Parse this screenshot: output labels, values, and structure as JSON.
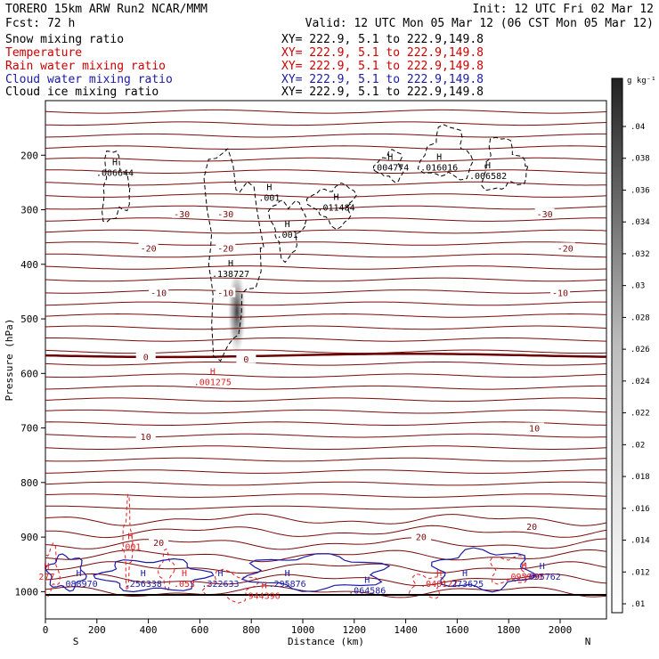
{
  "header": {
    "model": "TORERO  15km ARW    Run2     NCAR/MMM",
    "init": "Init: 12 UTC Fri 02 Mar 12",
    "fcst": "Fcst:    72 h",
    "valid": "Valid: 12 UTC Mon 05 Mar 12 (06 CST Mon 05 Mar 12)"
  },
  "fields": [
    {
      "name": "Snow mixing ratio",
      "xy": "XY= 222.9,   5.1 to 222.9,149.8",
      "color": "#000000"
    },
    {
      "name": "Temperature",
      "xy": "XY= 222.9,   5.1 to 222.9,149.8",
      "color": "#cc0000"
    },
    {
      "name": "Rain water mixing ratio",
      "xy": "XY= 222.9,   5.1 to 222.9,149.8",
      "color": "#cc0000"
    },
    {
      "name": "Cloud water mixing ratio",
      "xy": "XY= 222.9,   5.1 to 222.9,149.8",
      "color": "#1a1aa6"
    },
    {
      "name": "Cloud ice mixing ratio",
      "xy": "XY= 222.9,   5.1 to 222.9,149.8",
      "color": "#000000"
    }
  ],
  "colors": {
    "temperature": "#7a0a0a",
    "freezing_line": "#6b0000",
    "rain": "#e02020",
    "cloud_water": "#1a1aa6",
    "snow": "#000000"
  },
  "colorbar": {
    "unit": "g kg⁻¹",
    "ticks": [
      ".01",
      ".012",
      ".014",
      ".016",
      ".018",
      ".02",
      ".022",
      ".024",
      ".026",
      ".028",
      ".03",
      ".032",
      ".034",
      ".036",
      ".038",
      ".04"
    ]
  },
  "chart_data": {
    "type": "contour",
    "xlabel": "Distance (km)",
    "ylabel": "Pressure (hPa)",
    "xlim": [
      0,
      2180
    ],
    "ylim": [
      1050,
      100
    ],
    "x_ticks": [
      0,
      200,
      400,
      600,
      800,
      1000,
      1200,
      1400,
      1600,
      1800,
      2000
    ],
    "y_ticks": [
      200,
      300,
      400,
      500,
      600,
      700,
      800,
      900,
      1000
    ],
    "x_end_labels": {
      "left": "S",
      "right": "N"
    },
    "temperature_contours": [
      {
        "label": "-30",
        "positions": [
          {
            "x": 530,
            "p": 307
          },
          {
            "x": 700,
            "p": 307
          },
          {
            "x": 1940,
            "p": 307
          }
        ]
      },
      {
        "label": "-20",
        "positions": [
          {
            "x": 400,
            "p": 370
          },
          {
            "x": 700,
            "p": 370
          },
          {
            "x": 2020,
            "p": 370
          }
        ]
      },
      {
        "label": "-10",
        "positions": [
          {
            "x": 440,
            "p": 452
          },
          {
            "x": 700,
            "p": 452
          },
          {
            "x": 2000,
            "p": 452
          }
        ]
      },
      {
        "label": "0",
        "positions": [
          {
            "x": 390,
            "p": 569
          },
          {
            "x": 780,
            "p": 573
          }
        ]
      },
      {
        "label": "10",
        "positions": [
          {
            "x": 390,
            "p": 715
          },
          {
            "x": 1900,
            "p": 700
          }
        ]
      },
      {
        "label": "20",
        "positions": [
          {
            "x": 440,
            "p": 910
          },
          {
            "x": 1460,
            "p": 899
          },
          {
            "x": 1890,
            "p": 880
          }
        ]
      }
    ],
    "maxima": [
      {
        "field": "snow",
        "label": "H",
        "value": ".006644",
        "x": 270,
        "p": 235
      },
      {
        "field": "snow",
        "label": "H",
        "value": ".001",
        "x": 870,
        "p": 280
      },
      {
        "field": "snow",
        "label": "H",
        "value": ".001",
        "x": 940,
        "p": 348
      },
      {
        "field": "snow",
        "label": "H",
        "value": ".011484",
        "x": 1130,
        "p": 298
      },
      {
        "field": "snow",
        "label": "H",
        "value": ".004774",
        "x": 1340,
        "p": 225
      },
      {
        "field": "snow",
        "label": "H",
        "value": ".016016",
        "x": 1530,
        "p": 225
      },
      {
        "field": "snow",
        "label": "H",
        "value": ".006582",
        "x": 1720,
        "p": 240
      },
      {
        "field": "snow",
        "label": "H",
        "value": ".138727",
        "x": 720,
        "p": 420
      },
      {
        "field": "rain",
        "label": "H",
        "value": ".001275",
        "x": 650,
        "p": 618
      },
      {
        "field": "rain",
        "label": "H",
        "value": ".001",
        "x": 330,
        "p": 920
      },
      {
        "field": "rain",
        "label": "H",
        "value": "277",
        "x": 5,
        "p": 975
      },
      {
        "field": "cloud_water",
        "label": "H",
        "value": ".088970",
        "x": 130,
        "p": 988
      },
      {
        "field": "cloud_water",
        "label": "H",
        "value": ".256338",
        "x": 380,
        "p": 988
      },
      {
        "field": "rain",
        "label": "H",
        "value": ".053",
        "x": 540,
        "p": 988
      },
      {
        "field": "cloud_water",
        "label": "H",
        "value": ".322633",
        "x": 680,
        "p": 988
      },
      {
        "field": "cloud_water",
        "label": "H",
        "value": ".295876",
        "x": 940,
        "p": 988
      },
      {
        "field": "rain",
        "label": "H",
        "value": "944396",
        "x": 850,
        "p": 1010
      },
      {
        "field": "cloud_water",
        "label": "H",
        "value": ".064586",
        "x": 1250,
        "p": 1000
      },
      {
        "field": "rain",
        "label": "H",
        "value": ".040127",
        "x": 1530,
        "p": 988
      },
      {
        "field": "cloud_water",
        "label": "H",
        "value": ".273625",
        "x": 1630,
        "p": 988
      },
      {
        "field": "rain",
        "label": "H",
        "value": ".095999",
        "x": 1860,
        "p": 975
      },
      {
        "field": "cloud_water",
        "label": "H",
        "value": ".095762",
        "x": 1930,
        "p": 975
      }
    ]
  }
}
